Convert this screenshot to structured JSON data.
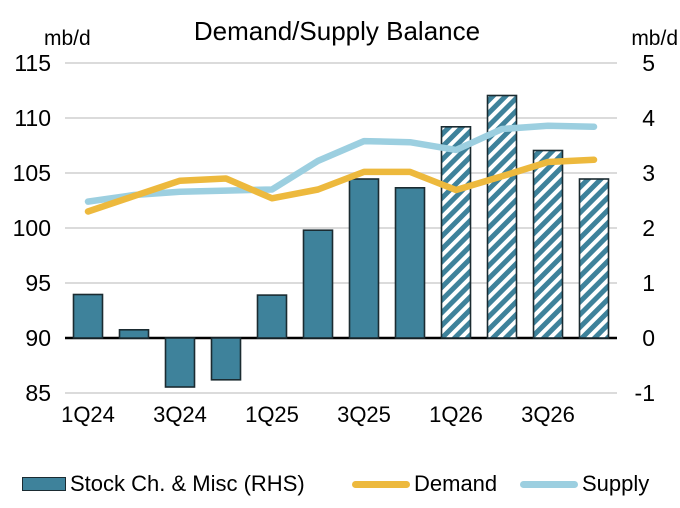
{
  "title": "Demand/Supply Balance",
  "left_axis": {
    "unit": "mb/d",
    "tick_values": [
      115,
      110,
      105,
      100,
      95,
      90,
      85
    ]
  },
  "right_axis": {
    "unit": "mb/d",
    "tick_values": [
      5,
      4,
      3,
      2,
      1,
      0,
      -1
    ]
  },
  "x_axis": {
    "tick_labels": [
      "1Q24",
      "3Q24",
      "1Q25",
      "3Q25",
      "1Q26",
      "3Q26"
    ],
    "tick_indices": [
      0,
      2,
      4,
      6,
      8,
      10
    ]
  },
  "legend": {
    "items": [
      {
        "label": "Stock Ch. & Misc (RHS)",
        "swatch": "bar"
      },
      {
        "label": "Demand",
        "swatch": "line"
      },
      {
        "label": "Supply",
        "swatch": "line"
      }
    ]
  },
  "colors": {
    "bar_fill": "#3E829B",
    "bar_border": "#1B2B31",
    "demand": "#EDB93D",
    "supply": "#9CCFE0",
    "gridline": "#D6D6D6",
    "zero_line": "#000000",
    "text": "#000000",
    "hatch_background": "#FFFFFF"
  },
  "chart_data": {
    "type": "combo_bar_line",
    "title": "Demand/Supply Balance",
    "categories": [
      "1Q24",
      "2Q24",
      "3Q24",
      "4Q24",
      "1Q25",
      "2Q25",
      "3Q25",
      "4Q25",
      "1Q26",
      "2Q26",
      "3Q26",
      "4Q26"
    ],
    "series": [
      {
        "name": "Stock Ch. & Misc (RHS)",
        "type": "bar",
        "axis": "right",
        "values": [
          0.79,
          0.15,
          -0.89,
          -0.76,
          0.78,
          1.96,
          2.89,
          2.73,
          3.84,
          4.41,
          3.41,
          2.89
        ],
        "hatched_from_index": 8
      },
      {
        "name": "Demand",
        "type": "line",
        "axis": "left",
        "values": [
          101.5,
          102.9,
          104.3,
          104.5,
          102.7,
          103.5,
          105.1,
          105.1,
          103.45,
          104.7,
          106.0,
          106.2
        ]
      },
      {
        "name": "Supply",
        "type": "line",
        "axis": "left",
        "values": [
          102.4,
          103.0,
          103.3,
          103.4,
          103.5,
          106.1,
          107.9,
          107.8,
          107.1,
          109.0,
          109.3,
          109.2
        ]
      }
    ],
    "left_axis_range": [
      85,
      115
    ],
    "right_axis_range": [
      -1,
      5
    ],
    "axis_relation": "left_value = 90 + 5 * right_value; bars baseline at right 0 (left 90)",
    "grid": "horizontal",
    "legend_position": "bottom"
  }
}
